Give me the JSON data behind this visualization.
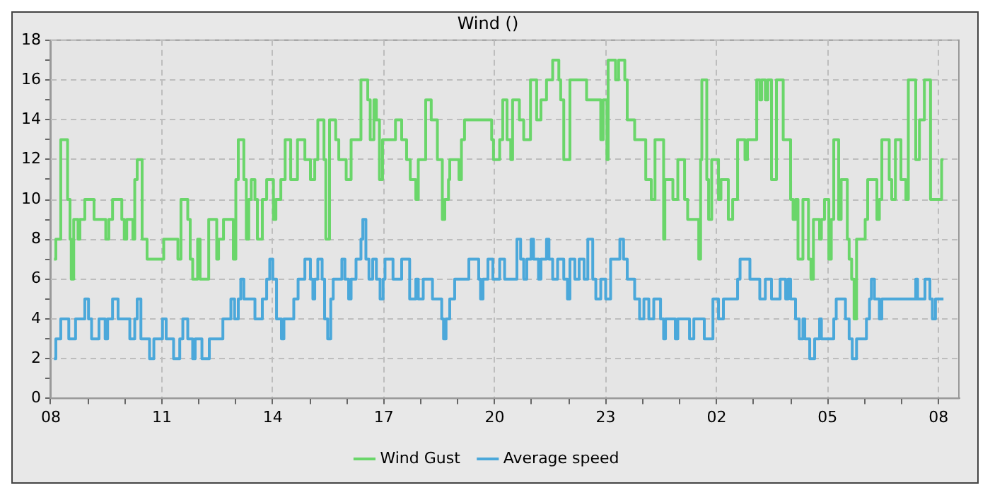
{
  "chart_data": {
    "type": "step",
    "title": "Wind ()",
    "legend": "bottom",
    "grid": true,
    "xlim": [
      "--01-01T08:00",
      "--01-02T08:33"
    ],
    "ylim": [
      0,
      18
    ],
    "xticks": [
      {
        "value": "--01-01T08:00",
        "label": "08"
      },
      {
        "value": "--01-01T09:00",
        "label": null
      },
      {
        "value": "--01-01T10:00",
        "label": null
      },
      {
        "value": "--01-01T11:00",
        "label": "11"
      },
      {
        "value": "--01-01T12:00",
        "label": null
      },
      {
        "value": "--01-01T13:00",
        "label": null
      },
      {
        "value": "--01-01T14:00",
        "label": "14"
      },
      {
        "value": "--01-01T15:00",
        "label": null
      },
      {
        "value": "--01-01T16:00",
        "label": null
      },
      {
        "value": "--01-01T17:00",
        "label": "17"
      },
      {
        "value": "--01-01T18:00",
        "label": null
      },
      {
        "value": "--01-01T19:00",
        "label": null
      },
      {
        "value": "--01-01T20:00",
        "label": "20"
      },
      {
        "value": "--01-01T21:00",
        "label": null
      },
      {
        "value": "--01-01T22:00",
        "label": null
      },
      {
        "value": "--01-01T23:00",
        "label": "23"
      },
      {
        "value": "--01-02T00:00",
        "label": null
      },
      {
        "value": "--01-02T01:00",
        "label": null
      },
      {
        "value": "--01-02T02:00",
        "label": "02"
      },
      {
        "value": "--01-02T03:00",
        "label": null
      },
      {
        "value": "--01-02T04:00",
        "label": null
      },
      {
        "value": "--01-02T05:00",
        "label": "05"
      },
      {
        "value": "--01-02T06:00",
        "label": null
      },
      {
        "value": "--01-02T07:00",
        "label": null
      },
      {
        "value": "--01-02T08:00",
        "label": "08"
      }
    ],
    "yticks": [
      0,
      {
        "value": 1,
        "label": null
      },
      2,
      {
        "value": 3,
        "label": null
      },
      4,
      {
        "value": 5,
        "label": null
      },
      6,
      {
        "value": 7,
        "label": null
      },
      8,
      {
        "value": 9,
        "label": null
      },
      10,
      {
        "value": 11,
        "label": null
      },
      12,
      {
        "value": 13,
        "label": null
      },
      14,
      {
        "value": 15,
        "label": null
      },
      16,
      {
        "value": 17,
        "label": null
      },
      18
    ],
    "series": [
      {
        "name": "Wind Gust",
        "color": "#6ad66a",
        "x": [
          "--01-01T08:05",
          "--01-01T08:08",
          "--01-01T08:16",
          "--01-01T08:27",
          "--01-01T08:31",
          "--01-01T08:33",
          "--01-01T08:37",
          "--01-01T08:44",
          "--01-01T08:47",
          "--01-01T08:55",
          "--01-01T09:10",
          "--01-01T09:29",
          "--01-01T09:34",
          "--01-01T09:40",
          "--01-01T09:55",
          "--01-01T09:59",
          "--01-01T10:03",
          "--01-01T10:13",
          "--01-01T10:16",
          "--01-01T10:20",
          "--01-01T10:28",
          "--01-01T10:36",
          "--01-01T11:03",
          "--01-01T11:26",
          "--01-01T11:31",
          "--01-01T11:42",
          "--01-01T11:46",
          "--01-01T11:50",
          "--01-01T11:58",
          "--01-01T12:02",
          "--01-01T12:16",
          "--01-01T12:29",
          "--01-01T12:32",
          "--01-01T12:40",
          "--01-01T12:56",
          "--01-01T13:00",
          "--01-01T13:04",
          "--01-01T13:13",
          "--01-01T13:17",
          "--01-01T13:21",
          "--01-01T13:25",
          "--01-01T13:31",
          "--01-01T13:35",
          "--01-01T13:43",
          "--01-01T13:50",
          "--01-01T14:01",
          "--01-01T14:05",
          "--01-01T14:13",
          "--01-01T14:20",
          "--01-01T14:29",
          "--01-01T14:40",
          "--01-01T14:52",
          "--01-01T15:01",
          "--01-01T15:08",
          "--01-01T15:13",
          "--01-01T15:23",
          "--01-01T15:26",
          "--01-01T15:32",
          "--01-01T15:42",
          "--01-01T15:47",
          "--01-01T15:59",
          "--01-01T16:07",
          "--01-01T16:23",
          "--01-01T16:34",
          "--01-01T16:38",
          "--01-01T16:44",
          "--01-01T16:48",
          "--01-01T16:53",
          "--01-01T16:58",
          "--01-01T17:19",
          "--01-01T17:29",
          "--01-01T17:37",
          "--01-01T17:43",
          "--01-01T17:52",
          "--01-01T17:56",
          "--01-01T18:08",
          "--01-01T18:17",
          "--01-01T18:27",
          "--01-01T18:35",
          "--01-01T18:39",
          "--01-01T18:45",
          "--01-01T18:47",
          "--01-01T19:02",
          "--01-01T19:06",
          "--01-01T19:11",
          "--01-01T19:55",
          "--01-01T19:58",
          "--01-01T20:08",
          "--01-01T20:13",
          "--01-01T20:20",
          "--01-01T20:26",
          "--01-01T20:29",
          "--01-01T20:40",
          "--01-01T20:47",
          "--01-01T20:58",
          "--01-01T21:08",
          "--01-01T21:15",
          "--01-01T21:24",
          "--01-01T21:34",
          "--01-01T21:44",
          "--01-01T21:47",
          "--01-01T21:52",
          "--01-01T22:02",
          "--01-01T22:29",
          "--01-01T22:52",
          "--01-01T22:56",
          "--01-01T23:02",
          "--01-01T23:04",
          "--01-01T23:16",
          "--01-01T23:21",
          "--01-01T23:31",
          "--01-01T23:35",
          "--01-01T23:47",
          "--01-02T00:05",
          "--01-02T00:14",
          "--01-02T00:20",
          "--01-02T00:34",
          "--01-02T00:36",
          "--01-02T00:49",
          "--01-02T00:57",
          "--01-02T01:08",
          "--01-02T01:13",
          "--01-02T01:31",
          "--01-02T01:34",
          "--01-02T01:36",
          "--01-02T01:44",
          "--01-02T01:47",
          "--01-02T01:52",
          "--01-02T02:03",
          "--01-02T02:07",
          "--01-02T02:19",
          "--01-02T02:26",
          "--01-02T02:34",
          "--01-02T02:46",
          "--01-02T02:50",
          "--01-02T03:05",
          "--01-02T03:10",
          "--01-02T03:13",
          "--01-02T03:19",
          "--01-02T03:23",
          "--01-02T03:29",
          "--01-02T03:37",
          "--01-02T03:48",
          "--01-02T04:00",
          "--01-02T04:04",
          "--01-02T04:08",
          "--01-02T04:12",
          "--01-02T04:20",
          "--01-02T04:29",
          "--01-02T04:33",
          "--01-02T04:37",
          "--01-02T04:47",
          "--01-02T04:50",
          "--01-02T04:55",
          "--01-02T05:02",
          "--01-02T05:06",
          "--01-02T05:10",
          "--01-02T05:18",
          "--01-02T05:22",
          "--01-02T05:32",
          "--01-02T05:35",
          "--01-02T05:39",
          "--01-02T05:43",
          "--01-02T05:47",
          "--01-02T06:01",
          "--01-02T06:05",
          "--01-02T06:20",
          "--01-02T06:24",
          "--01-02T06:28",
          "--01-02T06:40",
          "--01-02T06:44",
          "--01-02T06:50",
          "--01-02T06:59",
          "--01-02T07:07",
          "--01-02T07:11",
          "--01-02T07:23",
          "--01-02T07:29",
          "--01-02T07:37",
          "--01-02T07:47",
          "--01-02T08:05",
          "--01-02T08:08"
        ],
        "values": [
          7,
          8,
          13,
          10,
          8,
          6,
          9,
          8,
          9,
          10,
          9,
          8,
          9,
          10,
          9,
          8,
          9,
          8,
          11,
          12,
          8,
          7,
          8,
          7,
          10,
          9,
          7,
          6,
          8,
          6,
          9,
          7,
          8,
          9,
          7,
          11,
          13,
          11,
          8,
          10,
          11,
          10,
          8,
          10,
          11,
          9,
          10,
          11,
          13,
          11,
          13,
          12,
          11,
          12,
          14,
          12,
          8,
          14,
          13,
          12,
          11,
          13,
          16,
          15,
          13,
          15,
          14,
          11,
          13,
          14,
          13,
          12,
          11,
          10,
          12,
          15,
          14,
          12,
          9,
          10,
          11,
          12,
          11,
          13,
          14,
          13,
          12,
          13,
          15,
          13,
          12,
          15,
          14,
          13,
          16,
          14,
          15,
          16,
          17,
          16,
          15,
          12,
          16,
          15,
          13,
          15,
          12,
          17,
          16,
          17,
          16,
          14,
          13,
          11,
          10,
          13,
          8,
          11,
          10,
          12,
          10,
          9,
          7,
          12,
          16,
          11,
          9,
          12,
          10,
          11,
          9,
          10,
          13,
          12,
          13,
          16,
          15,
          16,
          15,
          16,
          11,
          16,
          13,
          10,
          9,
          10,
          7,
          10,
          7,
          6,
          9,
          8,
          9,
          10,
          7,
          9,
          13,
          9,
          11,
          8,
          7,
          6,
          4,
          8,
          9,
          11,
          9,
          10,
          13,
          11,
          10,
          13,
          11,
          10,
          16,
          12,
          14,
          16,
          10,
          12,
          12
        ]
      },
      {
        "name": "Average speed",
        "color": "#4ba8da",
        "x": [
          "--01-01T08:05",
          "--01-01T08:08",
          "--01-01T08:16",
          "--01-01T08:29",
          "--01-01T08:40",
          "--01-01T08:55",
          "--01-01T09:01",
          "--01-01T09:06",
          "--01-01T09:18",
          "--01-01T09:28",
          "--01-01T09:32",
          "--01-01T09:40",
          "--01-01T09:49",
          "--01-01T10:08",
          "--01-01T10:16",
          "--01-01T10:20",
          "--01-01T10:26",
          "--01-01T10:40",
          "--01-01T10:47",
          "--01-01T11:01",
          "--01-01T11:07",
          "--01-01T11:19",
          "--01-01T11:29",
          "--01-01T11:34",
          "--01-01T11:42",
          "--01-01T11:50",
          "--01-01T11:54",
          "--01-01T12:05",
          "--01-01T12:17",
          "--01-01T12:39",
          "--01-01T12:52",
          "--01-01T12:58",
          "--01-01T13:04",
          "--01-01T13:08",
          "--01-01T13:13",
          "--01-01T13:31",
          "--01-01T13:43",
          "--01-01T13:50",
          "--01-01T13:55",
          "--01-01T14:00",
          "--01-01T14:06",
          "--01-01T14:14",
          "--01-01T14:18",
          "--01-01T14:34",
          "--01-01T14:41",
          "--01-01T14:52",
          "--01-01T15:01",
          "--01-01T15:05",
          "--01-01T15:08",
          "--01-01T15:13",
          "--01-01T15:20",
          "--01-01T15:24",
          "--01-01T15:29",
          "--01-01T15:34",
          "--01-01T15:38",
          "--01-01T15:52",
          "--01-01T15:57",
          "--01-01T16:03",
          "--01-01T16:07",
          "--01-01T16:15",
          "--01-01T16:23",
          "--01-01T16:26",
          "--01-01T16:31",
          "--01-01T16:36",
          "--01-01T16:42",
          "--01-01T16:48",
          "--01-01T16:54",
          "--01-01T16:59",
          "--01-01T17:02",
          "--01-01T17:15",
          "--01-01T17:29",
          "--01-01T17:42",
          "--01-01T17:52",
          "--01-01T17:56",
          "--01-01T18:04",
          "--01-01T18:19",
          "--01-01T18:34",
          "--01-01T18:37",
          "--01-01T18:41",
          "--01-01T18:47",
          "--01-01T18:55",
          "--01-01T19:18",
          "--01-01T19:34",
          "--01-01T19:37",
          "--01-01T19:41",
          "--01-01T19:49",
          "--01-01T19:57",
          "--01-01T20:08",
          "--01-01T20:16",
          "--01-01T20:36",
          "--01-01T20:42",
          "--01-01T20:47",
          "--01-01T20:52",
          "--01-01T20:59",
          "--01-01T21:03",
          "--01-01T21:11",
          "--01-01T21:15",
          "--01-01T21:24",
          "--01-01T21:28",
          "--01-01T21:34",
          "--01-01T21:42",
          "--01-01T21:52",
          "--01-01T21:58",
          "--01-01T22:02",
          "--01-01T22:10",
          "--01-01T22:17",
          "--01-01T22:25",
          "--01-01T22:31",
          "--01-01T22:39",
          "--01-01T22:44",
          "--01-01T22:52",
          "--01-01T23:00",
          "--01-01T23:08",
          "--01-01T23:23",
          "--01-01T23:29",
          "--01-01T23:35",
          "--01-01T23:47",
          "--01-01T23:55",
          "--01-02T00:02",
          "--01-02T00:10",
          "--01-02T00:18",
          "--01-02T00:29",
          "--01-02T00:34",
          "--01-02T00:37",
          "--01-02T00:53",
          "--01-02T00:57",
          "--01-02T01:16",
          "--01-02T01:23",
          "--01-02T01:40",
          "--01-02T01:54",
          "--01-02T02:03",
          "--01-02T02:11",
          "--01-02T02:34",
          "--01-02T02:38",
          "--01-02T02:54",
          "--01-02T03:10",
          "--01-02T03:19",
          "--01-02T03:29",
          "--01-02T03:43",
          "--01-02T03:52",
          "--01-02T03:56",
          "--01-02T04:00",
          "--01-02T04:08",
          "--01-02T04:14",
          "--01-02T04:20",
          "--01-02T04:23",
          "--01-02T04:31",
          "--01-02T04:39",
          "--01-02T04:47",
          "--01-02T04:50",
          "--01-02T05:10",
          "--01-02T05:14",
          "--01-02T05:29",
          "--01-02T05:35",
          "--01-02T05:40",
          "--01-02T05:47",
          "--01-02T06:03",
          "--01-02T06:08",
          "--01-02T06:11",
          "--01-02T06:16",
          "--01-02T06:24",
          "--01-02T06:28",
          "--01-02T07:23",
          "--01-02T07:26",
          "--01-02T07:38",
          "--01-02T07:46",
          "--01-02T07:50",
          "--01-02T07:55",
          "--01-02T08:08"
        ],
        "values": [
          2,
          3,
          4,
          3,
          4,
          5,
          4,
          3,
          4,
          3,
          4,
          5,
          4,
          3,
          4,
          5,
          3,
          2,
          3,
          4,
          3,
          2,
          3,
          4,
          3,
          2,
          3,
          2,
          3,
          4,
          5,
          4,
          5,
          6,
          5,
          4,
          5,
          6,
          7,
          6,
          4,
          3,
          4,
          5,
          6,
          7,
          6,
          5,
          6,
          7,
          6,
          4,
          3,
          5,
          6,
          7,
          6,
          5,
          6,
          7,
          8,
          9,
          7,
          6,
          7,
          6,
          5,
          6,
          7,
          6,
          7,
          5,
          6,
          5,
          6,
          5,
          4,
          3,
          4,
          5,
          6,
          7,
          6,
          5,
          6,
          7,
          6,
          7,
          6,
          8,
          7,
          6,
          7,
          8,
          7,
          6,
          7,
          8,
          7,
          6,
          7,
          6,
          5,
          7,
          6,
          7,
          6,
          8,
          6,
          5,
          6,
          5,
          7,
          8,
          7,
          6,
          5,
          4,
          5,
          4,
          5,
          4,
          3,
          4,
          3,
          4,
          3,
          4,
          3,
          5,
          4,
          5,
          6,
          7,
          6,
          5,
          6,
          5,
          6,
          5,
          6,
          5,
          4,
          3,
          4,
          3,
          2,
          3,
          4,
          3,
          4,
          5,
          4,
          3,
          2,
          3,
          4,
          5,
          6,
          5,
          4,
          5,
          6,
          5,
          6,
          5,
          4,
          5,
          5
        ]
      }
    ]
  }
}
